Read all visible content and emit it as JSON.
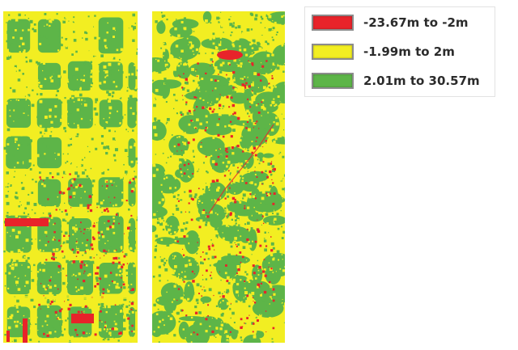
{
  "colors": {
    "red": "#e8232a",
    "yellow": "#f2ee22",
    "green": "#5db548"
  },
  "legend": {
    "items": [
      {
        "label": "-23.67m to -2m",
        "color": "#e8232a",
        "category": "red"
      },
      {
        "label": "-1.99m to 2m",
        "color": "#f2ee22",
        "category": "yellow"
      },
      {
        "label": "2.01m to 30.57m",
        "color": "#5db548",
        "category": "green"
      }
    ]
  }
}
